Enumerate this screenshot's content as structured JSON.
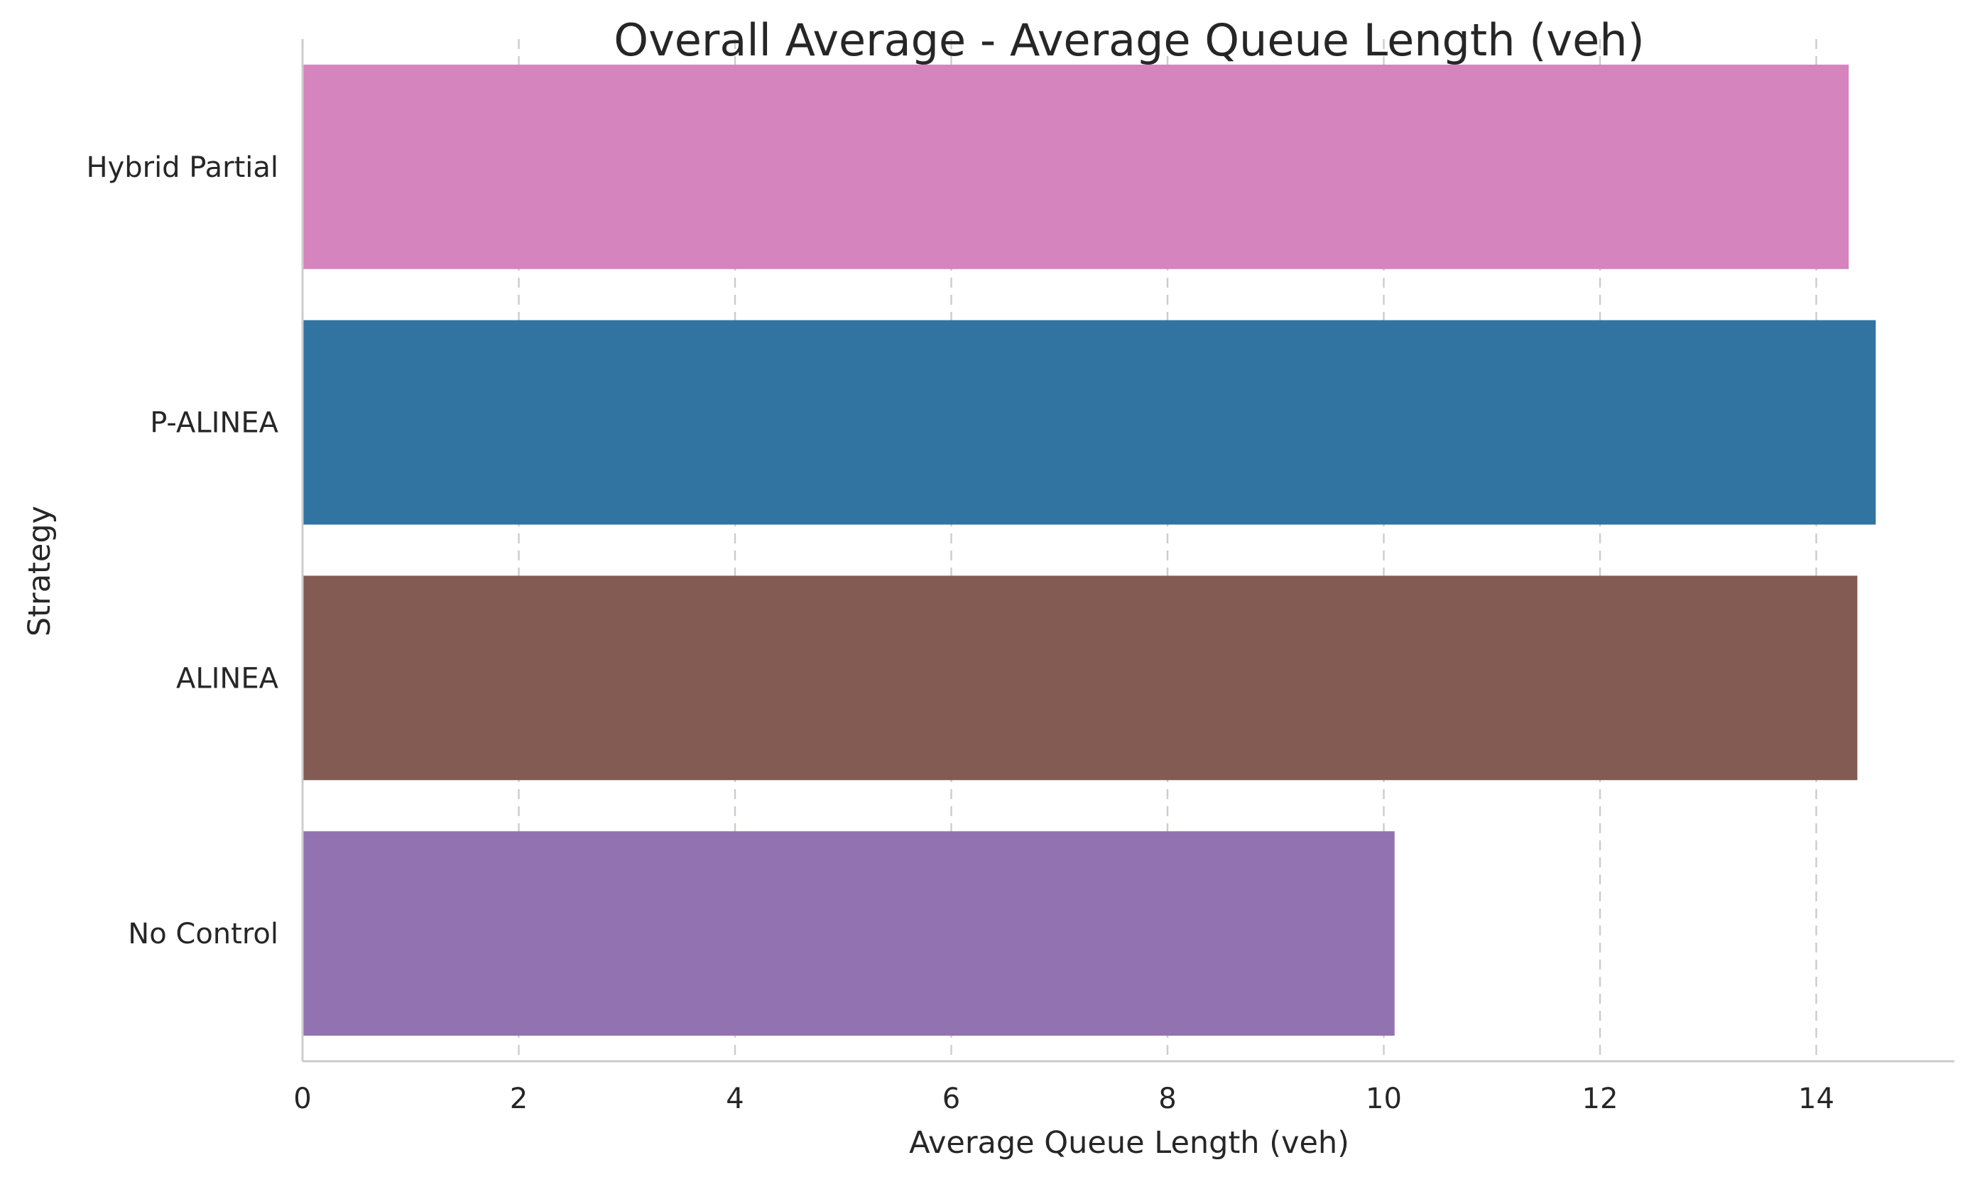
{
  "chart_data": {
    "type": "bar",
    "orientation": "horizontal",
    "title": "Overall Average - Average Queue Length (veh)",
    "xlabel": "Average Queue Length (veh)",
    "ylabel": "Strategy",
    "categories": [
      "Hybrid Partial",
      "P-ALINEA",
      "ALINEA",
      "No Control"
    ],
    "values": [
      14.3,
      14.55,
      14.38,
      10.1
    ],
    "colors": [
      "#d684bd",
      "#3274a1",
      "#845b53",
      "#9372b2"
    ],
    "xlim": [
      0,
      15.25
    ],
    "xticks": [
      0,
      2,
      4,
      6,
      8,
      10,
      12,
      14
    ],
    "grid": "x-dashed",
    "legend": "none"
  }
}
